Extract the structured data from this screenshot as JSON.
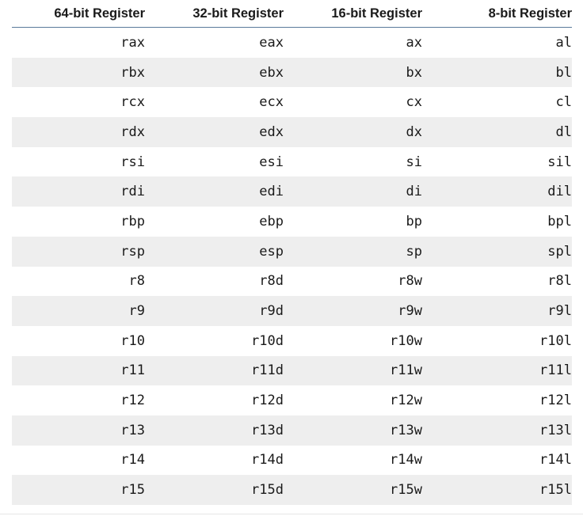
{
  "table": {
    "headers": [
      "64-bit Register",
      "32-bit Register",
      "16-bit Register",
      "8-bit Register"
    ],
    "rows": [
      [
        "rax",
        "eax",
        "ax",
        "al"
      ],
      [
        "rbx",
        "ebx",
        "bx",
        "bl"
      ],
      [
        "rcx",
        "ecx",
        "cx",
        "cl"
      ],
      [
        "rdx",
        "edx",
        "dx",
        "dl"
      ],
      [
        "rsi",
        "esi",
        "si",
        "sil"
      ],
      [
        "rdi",
        "edi",
        "di",
        "dil"
      ],
      [
        "rbp",
        "ebp",
        "bp",
        "bpl"
      ],
      [
        "rsp",
        "esp",
        "sp",
        "spl"
      ],
      [
        "r8",
        "r8d",
        "r8w",
        "r8l"
      ],
      [
        "r9",
        "r9d",
        "r9w",
        "r9l"
      ],
      [
        "r10",
        "r10d",
        "r10w",
        "r10l"
      ],
      [
        "r11",
        "r11d",
        "r11w",
        "r11l"
      ],
      [
        "r12",
        "r12d",
        "r12w",
        "r12l"
      ],
      [
        "r13",
        "r13d",
        "r13w",
        "r13l"
      ],
      [
        "r14",
        "r14d",
        "r14w",
        "r14l"
      ],
      [
        "r15",
        "r15d",
        "r15w",
        "r15l"
      ]
    ]
  },
  "colors": {
    "header_rule": "#5a7a9a",
    "stripe": "#eeeeee",
    "text": "#1a1a1a"
  }
}
